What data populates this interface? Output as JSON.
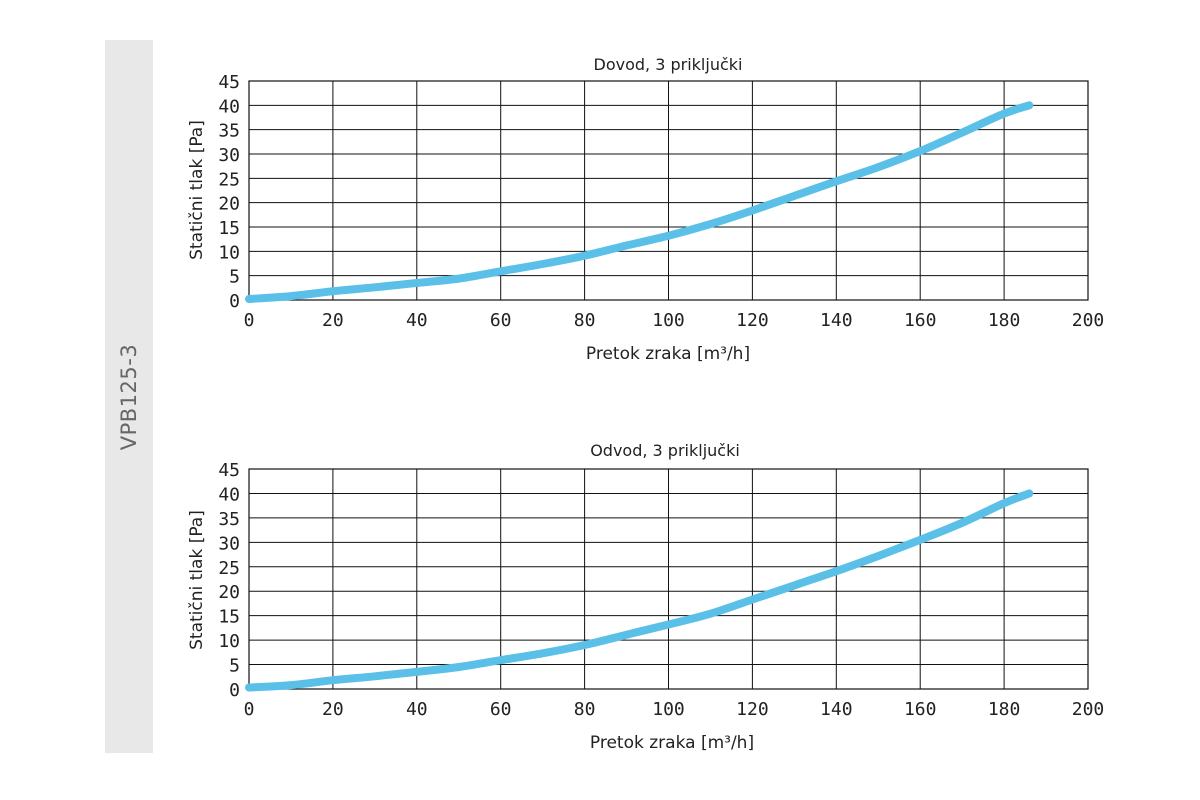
{
  "side_tab": {
    "label": "VPB125-3"
  },
  "chart_data": [
    {
      "type": "line",
      "title": "Dovod, 3 priključki",
      "xlabel": "Pretok zraka [m³/h]",
      "ylabel": "Statični tlak [Pa]",
      "xlim": [
        0,
        200
      ],
      "ylim": [
        0,
        45
      ],
      "x_ticks": [
        0,
        20,
        40,
        60,
        80,
        100,
        120,
        140,
        160,
        180,
        200
      ],
      "y_ticks": [
        0,
        5,
        10,
        15,
        20,
        25,
        30,
        35,
        40,
        45
      ],
      "grid": true,
      "line_color": "#5bc0e8",
      "series": [
        {
          "x": [
            0,
            10,
            20,
            30,
            40,
            50,
            60,
            70,
            80,
            90,
            100,
            110,
            120,
            130,
            140,
            150,
            160,
            170,
            180,
            186
          ],
          "values": [
            0.2,
            0.8,
            1.8,
            2.6,
            3.5,
            4.4,
            5.9,
            7.4,
            9.1,
            11.2,
            13.2,
            15.6,
            18.4,
            21.4,
            24.4,
            27.3,
            30.6,
            34.4,
            38.3,
            40.0
          ]
        }
      ]
    },
    {
      "type": "line",
      "title": "Odvod, 3 priključki",
      "xlabel": "Pretok zraka [m³/h]",
      "ylabel": "Statični tlak [Pa]",
      "xlim": [
        0,
        200
      ],
      "ylim": [
        0,
        45
      ],
      "x_ticks": [
        0,
        20,
        40,
        60,
        80,
        100,
        120,
        140,
        160,
        180,
        200
      ],
      "y_ticks": [
        0,
        5,
        10,
        15,
        20,
        25,
        30,
        35,
        40,
        45
      ],
      "grid": true,
      "line_color": "#5bc0e8",
      "series": [
        {
          "x": [
            0,
            10,
            20,
            30,
            40,
            50,
            60,
            70,
            80,
            90,
            100,
            110,
            120,
            130,
            140,
            150,
            160,
            170,
            180,
            186
          ],
          "values": [
            0.3,
            0.8,
            1.8,
            2.6,
            3.5,
            4.5,
            5.9,
            7.3,
            9.0,
            11.1,
            13.2,
            15.4,
            18.3,
            21.2,
            24.1,
            27.2,
            30.5,
            34.0,
            38.0,
            40.0
          ]
        }
      ]
    }
  ]
}
